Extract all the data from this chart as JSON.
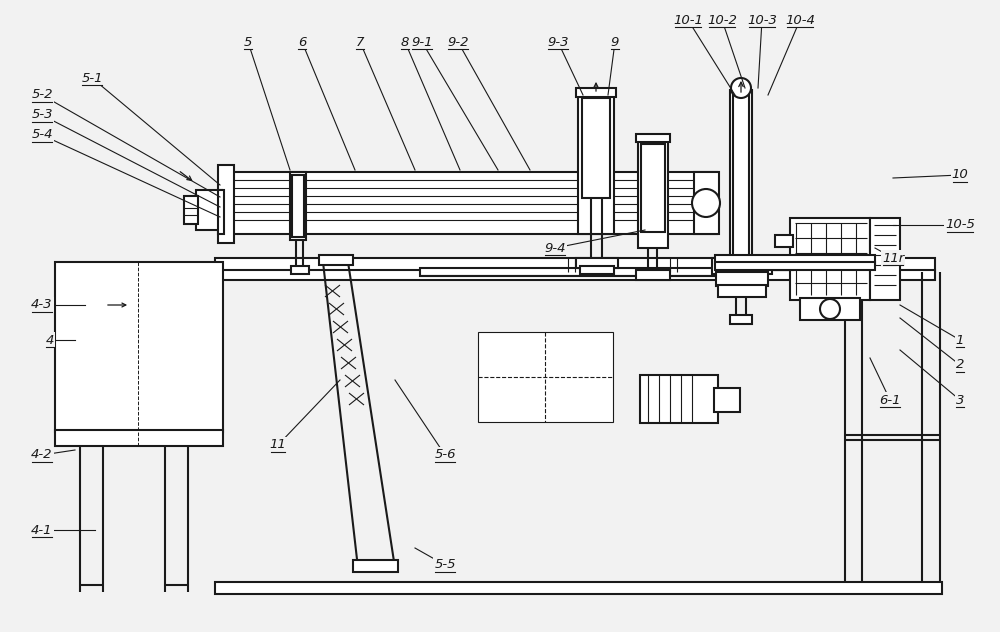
{
  "bg": "#f2f2f2",
  "lc": "#1a1a1a",
  "lw": 1.5,
  "tlw": 0.8,
  "fig_w": 10.0,
  "fig_h": 6.32,
  "labels": [
    [
      "1",
      960,
      340,
      900,
      305
    ],
    [
      "2",
      960,
      365,
      900,
      318
    ],
    [
      "3",
      960,
      400,
      900,
      350
    ],
    [
      "4",
      50,
      340,
      75,
      340
    ],
    [
      "4-1",
      42,
      530,
      95,
      530
    ],
    [
      "4-2",
      42,
      455,
      75,
      450
    ],
    [
      "4-3",
      42,
      305,
      85,
      305
    ],
    [
      "5",
      248,
      42,
      290,
      170
    ],
    [
      "5-1",
      92,
      78,
      220,
      185
    ],
    [
      "5-2",
      42,
      95,
      220,
      197
    ],
    [
      "5-3",
      42,
      115,
      220,
      207
    ],
    [
      "5-4",
      42,
      135,
      220,
      217
    ],
    [
      "5-5",
      445,
      565,
      415,
      548
    ],
    [
      "5-6",
      445,
      455,
      395,
      380
    ],
    [
      "6",
      302,
      42,
      355,
      170
    ],
    [
      "6-1",
      890,
      400,
      870,
      358
    ],
    [
      "7",
      360,
      42,
      415,
      170
    ],
    [
      "8",
      405,
      42,
      460,
      170
    ],
    [
      "9",
      615,
      42,
      608,
      95
    ],
    [
      "9-1",
      422,
      42,
      498,
      170
    ],
    [
      "9-2",
      458,
      42,
      530,
      170
    ],
    [
      "9-3",
      558,
      42,
      583,
      95
    ],
    [
      "9-4",
      555,
      248,
      645,
      230
    ],
    [
      "10",
      960,
      175,
      893,
      178
    ],
    [
      "10-1",
      688,
      20,
      735,
      95
    ],
    [
      "10-2",
      722,
      20,
      745,
      88
    ],
    [
      "10-3",
      762,
      20,
      758,
      88
    ],
    [
      "10-4",
      800,
      20,
      768,
      95
    ],
    [
      "10-5",
      960,
      225,
      893,
      225
    ],
    [
      "11",
      278,
      445,
      340,
      380
    ],
    [
      "11r",
      893,
      258,
      875,
      248
    ]
  ]
}
